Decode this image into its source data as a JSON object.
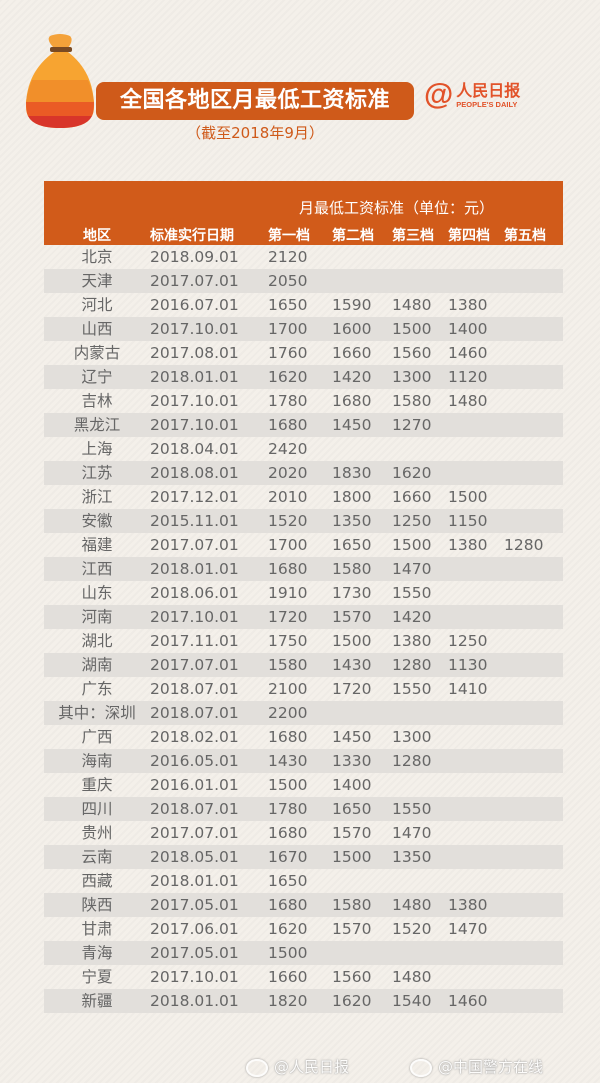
{
  "header": {
    "title": "全国各地区月最低工资标准",
    "subtitle": "（截至2018年9月）",
    "logo": {
      "at": "@",
      "name": "人民日报",
      "english": "PEOPLE'S DAILY"
    },
    "accent_color": "#cf5a1a"
  },
  "table": {
    "unit_label": "月最低工资标准（单位：元）",
    "columns": [
      "地区",
      "标准实行日期",
      "第一档",
      "第二档",
      "第三档",
      "第四档",
      "第五档"
    ],
    "rows": [
      [
        "北京",
        "2018.09.01",
        "2120",
        "",
        "",
        "",
        ""
      ],
      [
        "天津",
        "2017.07.01",
        "2050",
        "",
        "",
        "",
        ""
      ],
      [
        "河北",
        "2016.07.01",
        "1650",
        "1590",
        "1480",
        "1380",
        ""
      ],
      [
        "山西",
        "2017.10.01",
        "1700",
        "1600",
        "1500",
        "1400",
        ""
      ],
      [
        "内蒙古",
        "2017.08.01",
        "1760",
        "1660",
        "1560",
        "1460",
        ""
      ],
      [
        "辽宁",
        "2018.01.01",
        "1620",
        "1420",
        "1300",
        "1120",
        ""
      ],
      [
        "吉林",
        "2017.10.01",
        "1780",
        "1680",
        "1580",
        "1480",
        ""
      ],
      [
        "黑龙江",
        "2017.10.01",
        "1680",
        "1450",
        "1270",
        "",
        ""
      ],
      [
        "上海",
        "2018.04.01",
        "2420",
        "",
        "",
        "",
        ""
      ],
      [
        "江苏",
        "2018.08.01",
        "2020",
        "1830",
        "1620",
        "",
        ""
      ],
      [
        "浙江",
        "2017.12.01",
        "2010",
        "1800",
        "1660",
        "1500",
        ""
      ],
      [
        "安徽",
        "2015.11.01",
        "1520",
        "1350",
        "1250",
        "1150",
        ""
      ],
      [
        "福建",
        "2017.07.01",
        "1700",
        "1650",
        "1500",
        "1380",
        "1280"
      ],
      [
        "江西",
        "2018.01.01",
        "1680",
        "1580",
        "1470",
        "",
        ""
      ],
      [
        "山东",
        "2018.06.01",
        "1910",
        "1730",
        "1550",
        "",
        ""
      ],
      [
        "河南",
        "2017.10.01",
        "1720",
        "1570",
        "1420",
        "",
        ""
      ],
      [
        "湖北",
        "2017.11.01",
        "1750",
        "1500",
        "1380",
        "1250",
        ""
      ],
      [
        "湖南",
        "2017.07.01",
        "1580",
        "1430",
        "1280",
        "1130",
        ""
      ],
      [
        "广东",
        "2018.07.01",
        "2100",
        "1720",
        "1550",
        "1410",
        ""
      ],
      [
        "其中：深圳",
        "2018.07.01",
        "2200",
        "",
        "",
        "",
        ""
      ],
      [
        "广西",
        "2018.02.01",
        "1680",
        "1450",
        "1300",
        "",
        ""
      ],
      [
        "海南",
        "2016.05.01",
        "1430",
        "1330",
        "1280",
        "",
        ""
      ],
      [
        "重庆",
        "2016.01.01",
        "1500",
        "1400",
        "",
        "",
        ""
      ],
      [
        "四川",
        "2018.07.01",
        "1780",
        "1650",
        "1550",
        "",
        ""
      ],
      [
        "贵州",
        "2017.07.01",
        "1680",
        "1570",
        "1470",
        "",
        ""
      ],
      [
        "云南",
        "2018.05.01",
        "1670",
        "1500",
        "1350",
        "",
        ""
      ],
      [
        "西藏",
        "2018.01.01",
        "1650",
        "",
        "",
        "",
        ""
      ],
      [
        "陕西",
        "2017.05.01",
        "1680",
        "1580",
        "1480",
        "1380",
        ""
      ],
      [
        "甘肃",
        "2017.06.01",
        "1620",
        "1570",
        "1520",
        "1470",
        ""
      ],
      [
        "青海",
        "2017.05.01",
        "1500",
        "",
        "",
        "",
        ""
      ],
      [
        "宁夏",
        "2017.10.01",
        "1660",
        "1560",
        "1480",
        "",
        ""
      ],
      [
        "新疆",
        "2018.01.01",
        "1820",
        "1620",
        "1540",
        "1460",
        ""
      ]
    ]
  },
  "watermarks": [
    "@人民日报",
    "@中国警方在线"
  ]
}
